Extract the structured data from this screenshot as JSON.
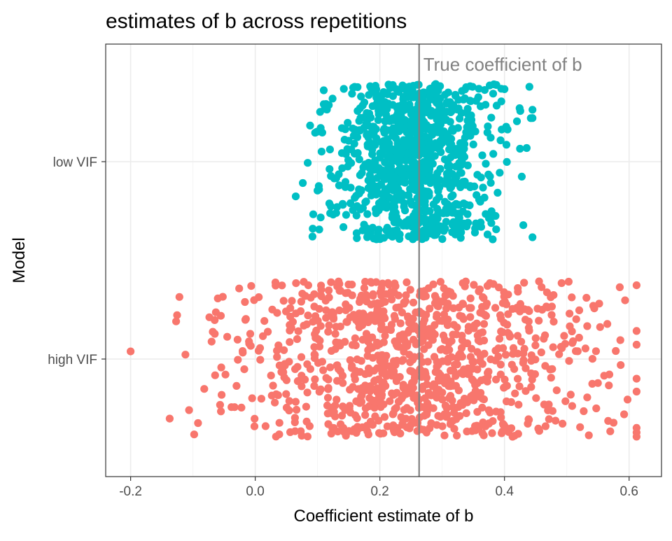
{
  "chart_data": {
    "type": "scatter",
    "title": "estimates of b across repetitions",
    "xlabel": "Coefficient estimate of b",
    "ylabel": "Model",
    "xlim": [
      -0.24,
      0.652
    ],
    "x_ticks": [
      -0.2,
      0.0,
      0.2,
      0.4,
      0.6
    ],
    "x_tick_labels": [
      "-0.2",
      "0.0",
      "0.2",
      "0.4",
      "0.6"
    ],
    "categories": [
      "high VIF",
      "low VIF"
    ],
    "grid": true,
    "legend": "none",
    "reference_line": {
      "x": 0.263,
      "label": "True coefficient of b",
      "color": "#808080"
    },
    "series": [
      {
        "name": "low VIF",
        "category": "low VIF",
        "color": "#00BFC4",
        "count": 1000,
        "x_mean": 0.26,
        "x_sd": 0.065,
        "x_min": 0.065,
        "x_max": 0.445,
        "jitter": 0.38,
        "x": [
          0.065,
          0.1,
          0.105,
          0.11,
          0.12,
          0.445,
          0.445,
          0.44,
          0.425,
          0.395,
          0.42,
          0.405,
          0.13,
          0.4,
          0.1,
          0.11,
          0.115,
          0.125,
          0.105,
          0.13
        ]
      },
      {
        "name": "high VIF",
        "category": "high VIF",
        "color": "#F8766D",
        "count": 1000,
        "x_mean": 0.255,
        "x_sd": 0.14,
        "x_min": -0.2,
        "x_max": 0.612,
        "jitter": 0.38,
        "x": [
          -0.2,
          -0.127,
          -0.112,
          -0.098,
          -0.07,
          -0.065,
          -0.06,
          -0.03,
          -0.02,
          -0.015,
          -0.01,
          0.612,
          0.592,
          0.585,
          0.575,
          0.565,
          0.56,
          0.55,
          0.53,
          0.52,
          0.51
        ]
      }
    ]
  }
}
